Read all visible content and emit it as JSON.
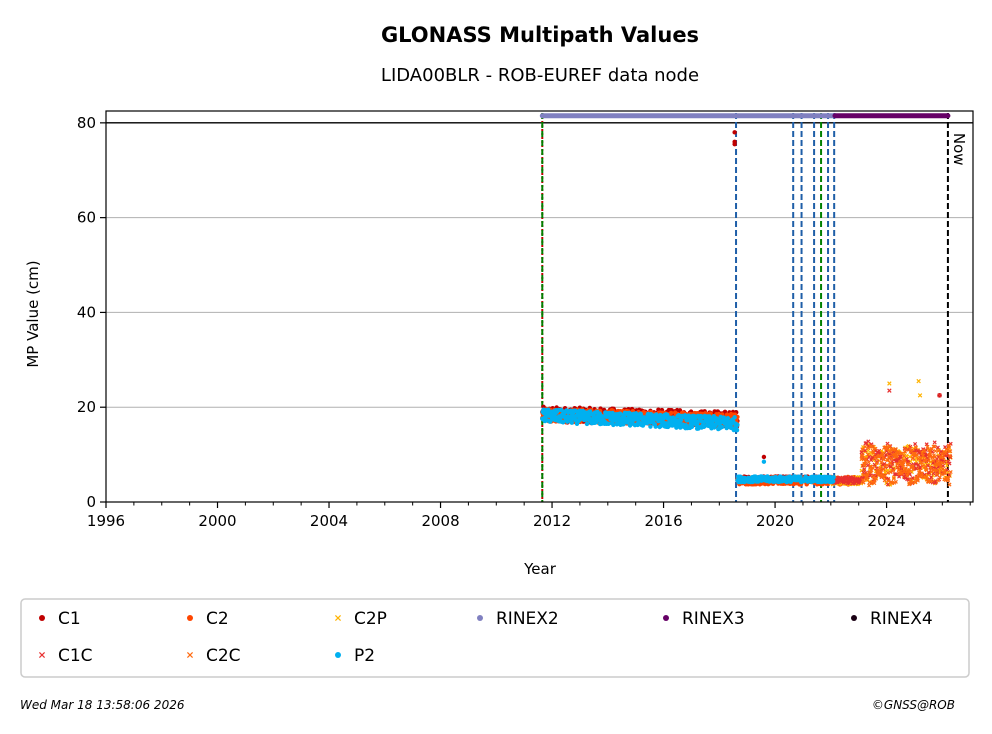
{
  "chart_data": {
    "type": "scatter",
    "title": "GLONASS Multipath Values",
    "subtitle": "LIDA00BLR - ROB-EUREF data node",
    "xlabel": "Year",
    "ylabel": "MP Value (cm)",
    "xlim": [
      1996,
      2027.1
    ],
    "ylim": [
      0,
      82.5
    ],
    "x_ticks": [
      1996,
      2000,
      2004,
      2008,
      2012,
      2016,
      2020,
      2024
    ],
    "y_ticks": [
      0,
      20,
      40,
      60,
      80
    ],
    "grid": "horizontal",
    "legend_placement": "bottom",
    "series": [
      {
        "name": "C1",
        "marker": "dot",
        "color": "#c00000",
        "segments": [
          {
            "x": [
              2011.65,
              2018.65
            ],
            "y": [
              18.5,
              17.5
            ],
            "spread": 1.6
          },
          {
            "x": [
              2018.65,
              2022.0
            ],
            "y": [
              4.8,
              4.8
            ],
            "spread": 0.6
          }
        ],
        "points": [
          [
            2018.55,
            78.0
          ],
          [
            2018.55,
            76.0
          ],
          [
            2018.55,
            75.5
          ],
          [
            2025.9,
            22.5
          ],
          [
            2019.6,
            9.5
          ]
        ]
      },
      {
        "name": "C2",
        "marker": "dot",
        "color": "#ff4500",
        "segments": [
          {
            "x": [
              2011.65,
              2018.65
            ],
            "y": [
              18.4,
              17.2
            ],
            "spread": 1.4
          },
          {
            "x": [
              2018.65,
              2023.0
            ],
            "y": [
              4.5,
              4.5
            ],
            "spread": 0.8
          }
        ],
        "points": []
      },
      {
        "name": "C2P",
        "marker": "x",
        "color": "#ffb300",
        "segments": [
          {
            "x": [
              2022.0,
              2023.1
            ],
            "y": [
              4.5,
              4.5
            ],
            "spread": 0.8
          },
          {
            "x": [
              2023.1,
              2026.3
            ],
            "y": [
              8.0,
              8.0
            ],
            "spread": 4.0
          }
        ],
        "points": [
          [
            2024.1,
            25.0
          ],
          [
            2025.15,
            25.5
          ],
          [
            2025.2,
            22.5
          ]
        ]
      },
      {
        "name": "RINEX2",
        "marker": "dot",
        "color": "#8080c0",
        "segments": [
          {
            "x": [
              2011.65,
              2022.15
            ],
            "y": [
              81.5,
              81.5
            ],
            "spread": 0
          }
        ],
        "points": []
      },
      {
        "name": "RINEX3",
        "marker": "dot",
        "color": "#660066",
        "segments": [
          {
            "x": [
              2022.15,
              2026.2
            ],
            "y": [
              81.5,
              81.5
            ],
            "spread": 0
          }
        ],
        "points": []
      },
      {
        "name": "RINEX4",
        "marker": "dot",
        "color": "#1a0014",
        "segments": [],
        "points": []
      },
      {
        "name": "C1C",
        "marker": "x",
        "color": "#e83030",
        "segments": [
          {
            "x": [
              2022.0,
              2023.1
            ],
            "y": [
              4.6,
              4.6
            ],
            "spread": 0.7
          },
          {
            "x": [
              2023.1,
              2026.3
            ],
            "y": [
              8.2,
              8.2
            ],
            "spread": 4.2
          }
        ],
        "points": [
          [
            2024.1,
            23.5
          ],
          [
            2025.9,
            22.5
          ]
        ]
      },
      {
        "name": "C2C",
        "marker": "x",
        "color": "#ff6a10",
        "segments": [
          {
            "x": [
              2023.1,
              2026.3
            ],
            "y": [
              7.8,
              7.8
            ],
            "spread": 4.0
          }
        ],
        "points": []
      },
      {
        "name": "P2",
        "marker": "dot",
        "color": "#00b0f0",
        "segments": [
          {
            "x": [
              2011.65,
              2018.65
            ],
            "y": [
              18.2,
              16.5
            ],
            "spread": 1.4
          },
          {
            "x": [
              2018.65,
              2022.1
            ],
            "y": [
              4.8,
              4.8
            ],
            "spread": 0.6
          }
        ],
        "points": [
          [
            2019.6,
            8.5
          ]
        ]
      }
    ],
    "vertical_lines": [
      {
        "x": 2011.65,
        "color": "#c00000",
        "style": "dotted"
      },
      {
        "x": 2011.65,
        "color": "#008000",
        "style": "dashed"
      },
      {
        "x": 2018.6,
        "color": "#1f5fa8",
        "style": "dashed"
      },
      {
        "x": 2020.65,
        "color": "#1f5fa8",
        "style": "dashed"
      },
      {
        "x": 2020.95,
        "color": "#1f5fa8",
        "style": "dashed"
      },
      {
        "x": 2021.4,
        "color": "#1f5fa8",
        "style": "dashed"
      },
      {
        "x": 2021.65,
        "color": "#008000",
        "style": "dashed"
      },
      {
        "x": 2021.9,
        "color": "#1f5fa8",
        "style": "dashed"
      },
      {
        "x": 2022.12,
        "color": "#1f5fa8",
        "style": "dashed"
      },
      {
        "x": 2026.2,
        "color": "#000000",
        "style": "dashed",
        "label": "Now"
      }
    ],
    "reference_line_y": 80
  },
  "footer": {
    "timestamp": "Wed Mar 18 13:58:06 2026",
    "credit": "©GNSS@ROB"
  }
}
